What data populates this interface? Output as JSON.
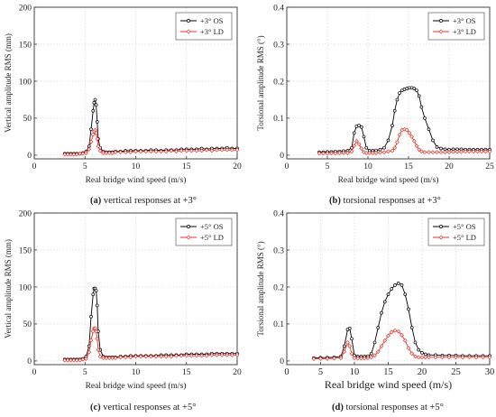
{
  "chart_data": [
    {
      "type": "line",
      "panel": "a",
      "caption_letter": "(a)",
      "caption_text": " vertical responses at +3°",
      "xlabel": "Real bridge wind speed (m/s)",
      "ylabel": "Vertical amplitude RMS (mm)",
      "xlim": [
        0,
        20
      ],
      "ylim": [
        -5,
        200
      ],
      "xticks": [
        0,
        5,
        10,
        15,
        20
      ],
      "yticks": [
        0,
        50,
        100,
        150,
        200
      ],
      "grid": true,
      "legend_position": "top-right",
      "series": [
        {
          "name": "+3° OS",
          "color": "#000000",
          "marker": "circle",
          "x": [
            3.0,
            3.3,
            3.6,
            3.9,
            4.2,
            4.5,
            4.8,
            5.1,
            5.4,
            5.6,
            5.8,
            5.9,
            6.0,
            6.1,
            6.2,
            6.3,
            6.5,
            6.8,
            7.1,
            7.4,
            7.7,
            8.0,
            8.5,
            9.0,
            9.5,
            10.0,
            10.5,
            11.0,
            11.5,
            12.0,
            12.5,
            13.0,
            13.5,
            14.0,
            14.5,
            15.0,
            15.5,
            16.0,
            16.5,
            17.0,
            17.5,
            18.0,
            18.5,
            19.0,
            19.5,
            20.0
          ],
          "y": [
            2,
            2,
            2,
            2,
            2,
            2,
            3,
            5,
            12,
            35,
            60,
            71,
            75,
            68,
            45,
            22,
            10,
            5,
            4,
            4,
            4,
            5,
            5,
            6,
            6,
            6,
            6,
            6,
            7,
            7,
            6,
            7,
            7,
            7,
            8,
            8,
            8,
            8,
            9,
            8,
            9,
            9,
            9,
            10,
            9,
            9
          ]
        },
        {
          "name": "+3° LD",
          "color": "#e8322a",
          "marker": "diamond",
          "x": [
            3.0,
            3.3,
            3.6,
            3.9,
            4.2,
            4.5,
            4.8,
            5.1,
            5.4,
            5.6,
            5.8,
            5.9,
            6.0,
            6.1,
            6.2,
            6.3,
            6.5,
            6.8,
            7.1,
            7.4,
            7.7,
            8.0,
            8.5,
            9.0,
            9.5,
            10.0,
            10.5,
            11.0,
            11.5,
            12.0,
            12.5,
            13.0,
            13.5,
            14.0,
            14.5,
            15.0,
            15.5,
            16.0,
            16.5,
            17.0,
            17.5,
            18.0,
            18.5,
            19.0,
            19.5,
            20.0
          ],
          "y": [
            1,
            1,
            1,
            1,
            1,
            2,
            2,
            3,
            8,
            18,
            28,
            32,
            34,
            30,
            22,
            12,
            6,
            3,
            3,
            3,
            3,
            4,
            4,
            4,
            4,
            5,
            5,
            5,
            5,
            5,
            5,
            5,
            6,
            5,
            6,
            6,
            6,
            6,
            6,
            7,
            6,
            7,
            7,
            7,
            7,
            7
          ]
        }
      ]
    },
    {
      "type": "line",
      "panel": "b",
      "caption_letter": "(b)",
      "caption_text": " torsional responses at +3°",
      "xlabel": "Real bridge wind speed (m/s)",
      "ylabel": "Torsional amplitude RMS (°)",
      "xlim": [
        0,
        25
      ],
      "ylim": [
        -0.01,
        0.4
      ],
      "xticks": [
        0,
        5,
        10,
        15,
        20,
        25
      ],
      "yticks": [
        0.0,
        0.1,
        0.2,
        0.3,
        0.4
      ],
      "grid": true,
      "legend_position": "top-right",
      "series": [
        {
          "name": "+3° OS",
          "color": "#000000",
          "marker": "circle",
          "x": [
            4.0,
            4.5,
            5.0,
            5.5,
            6.0,
            6.5,
            7.0,
            7.5,
            8.0,
            8.3,
            8.6,
            8.9,
            9.2,
            9.5,
            9.8,
            10.2,
            10.6,
            11.0,
            11.5,
            12.0,
            12.5,
            13.0,
            13.3,
            13.6,
            13.9,
            14.2,
            14.5,
            14.8,
            15.1,
            15.4,
            15.7,
            16.0,
            16.3,
            16.6,
            17.0,
            17.5,
            18.0,
            18.5,
            19.0,
            19.5,
            20.0,
            20.5,
            21.0,
            21.5,
            22.0,
            22.5,
            23.0,
            23.5,
            24.0,
            24.5,
            25.0
          ],
          "y": [
            0.008,
            0.008,
            0.009,
            0.009,
            0.01,
            0.01,
            0.011,
            0.012,
            0.02,
            0.06,
            0.078,
            0.08,
            0.076,
            0.05,
            0.02,
            0.012,
            0.012,
            0.013,
            0.015,
            0.02,
            0.04,
            0.08,
            0.12,
            0.15,
            0.168,
            0.175,
            0.178,
            0.18,
            0.182,
            0.182,
            0.18,
            0.175,
            0.16,
            0.13,
            0.1,
            0.07,
            0.04,
            0.022,
            0.018,
            0.016,
            0.015,
            0.016,
            0.016,
            0.016,
            0.015,
            0.015,
            0.015,
            0.015,
            0.015,
            0.015,
            0.015
          ]
        },
        {
          "name": "+3° LD",
          "color": "#e8322a",
          "marker": "diamond",
          "x": [
            4.0,
            4.5,
            5.0,
            5.5,
            6.0,
            6.5,
            7.0,
            7.5,
            8.0,
            8.3,
            8.6,
            8.9,
            9.2,
            9.5,
            9.8,
            10.2,
            10.6,
            11.0,
            11.5,
            12.0,
            12.5,
            13.0,
            13.3,
            13.6,
            13.9,
            14.2,
            14.5,
            14.8,
            15.1,
            15.4,
            15.7,
            16.0,
            16.3,
            16.6,
            17.0,
            17.5,
            18.0,
            18.5,
            19.0,
            19.5,
            20.0,
            20.5,
            21.0,
            21.5,
            22.0,
            22.5,
            23.0,
            23.5,
            24.0,
            24.5,
            25.0
          ],
          "y": [
            0.005,
            0.005,
            0.005,
            0.005,
            0.005,
            0.006,
            0.006,
            0.006,
            0.01,
            0.025,
            0.038,
            0.03,
            0.018,
            0.008,
            0.006,
            0.006,
            0.006,
            0.006,
            0.007,
            0.008,
            0.01,
            0.012,
            0.02,
            0.035,
            0.055,
            0.068,
            0.07,
            0.068,
            0.06,
            0.05,
            0.038,
            0.025,
            0.015,
            0.01,
            0.008,
            0.008,
            0.008,
            0.008,
            0.008,
            0.008,
            0.008,
            0.009,
            0.009,
            0.009,
            0.01,
            0.01,
            0.01,
            0.01,
            0.01,
            0.01,
            0.01
          ]
        }
      ]
    },
    {
      "type": "line",
      "panel": "c",
      "caption_letter": "(c)",
      "caption_text": " vertical responses at +5°",
      "xlabel": "Real bridge wind speed (m/s)",
      "ylabel": "Vertical amplitude RMS (mm)",
      "xlim": [
        0,
        20
      ],
      "ylim": [
        -5,
        200
      ],
      "xticks": [
        0,
        5,
        10,
        15,
        20
      ],
      "yticks": [
        0,
        50,
        100,
        150,
        200
      ],
      "grid": true,
      "legend_position": "top-right",
      "series": [
        {
          "name": "+5° OS",
          "color": "#000000",
          "marker": "circle",
          "x": [
            3.0,
            3.3,
            3.6,
            3.9,
            4.2,
            4.5,
            4.8,
            5.1,
            5.4,
            5.6,
            5.8,
            5.9,
            6.0,
            6.1,
            6.2,
            6.3,
            6.5,
            6.8,
            7.1,
            7.4,
            7.7,
            8.0,
            8.5,
            9.0,
            9.5,
            10.0,
            10.5,
            11.0,
            11.5,
            12.0,
            12.5,
            13.0,
            13.5,
            14.0,
            14.5,
            15.0,
            15.5,
            16.0,
            16.5,
            17.0,
            17.5,
            18.0,
            18.5,
            19.0,
            19.5,
            20.0
          ],
          "y": [
            2,
            2,
            2,
            2,
            2,
            2,
            3,
            6,
            20,
            60,
            90,
            98,
            98,
            95,
            75,
            40,
            15,
            6,
            5,
            5,
            5,
            5,
            6,
            6,
            7,
            7,
            7,
            7,
            7,
            7,
            8,
            8,
            8,
            8,
            8,
            9,
            9,
            9,
            9,
            9,
            10,
            10,
            10,
            10,
            10,
            10
          ]
        },
        {
          "name": "+5° LD",
          "color": "#e8322a",
          "marker": "diamond",
          "x": [
            3.0,
            3.3,
            3.6,
            3.9,
            4.2,
            4.5,
            4.8,
            5.1,
            5.4,
            5.6,
            5.8,
            5.9,
            6.0,
            6.1,
            6.2,
            6.3,
            6.5,
            6.8,
            7.1,
            7.4,
            7.7,
            8.0,
            8.5,
            9.0,
            9.5,
            10.0,
            10.5,
            11.0,
            11.5,
            12.0,
            12.5,
            13.0,
            13.5,
            14.0,
            14.5,
            15.0,
            15.5,
            16.0,
            16.5,
            17.0,
            17.5,
            18.0,
            18.5,
            19.0,
            19.5,
            20.0
          ],
          "y": [
            1,
            1,
            1,
            1,
            1,
            1,
            2,
            3,
            12,
            28,
            40,
            44,
            44,
            40,
            30,
            15,
            6,
            4,
            4,
            4,
            4,
            4,
            5,
            5,
            5,
            6,
            6,
            6,
            6,
            6,
            6,
            6,
            6,
            7,
            7,
            7,
            7,
            7,
            7,
            7,
            8,
            8,
            8,
            8,
            8,
            8
          ]
        }
      ]
    },
    {
      "type": "line",
      "panel": "d",
      "caption_letter": "(d)",
      "caption_text": " torsional responses at +5°",
      "xlabel": "Real bridge wind speed (m/s)",
      "ylabel": "Torsional amplitude RMS (°)",
      "xlim": [
        0,
        30
      ],
      "ylim": [
        -0.01,
        0.4
      ],
      "xticks": [
        0,
        5,
        10,
        15,
        20,
        25,
        30
      ],
      "yticks": [
        0.0,
        0.1,
        0.2,
        0.3,
        0.4
      ],
      "grid": true,
      "legend_position": "top-right",
      "series": [
        {
          "name": "+5° OS",
          "color": "#000000",
          "marker": "circle",
          "x": [
            4.0,
            5.0,
            6.0,
            7.0,
            8.0,
            8.5,
            9.0,
            9.3,
            9.6,
            10.0,
            10.5,
            11.0,
            11.5,
            12.0,
            12.5,
            13.0,
            13.5,
            14.0,
            14.5,
            15.0,
            15.5,
            16.0,
            16.5,
            17.0,
            17.5,
            18.0,
            18.5,
            19.0,
            19.5,
            20.0,
            20.5,
            21.0,
            22.0,
            23.0,
            24.0,
            25.0,
            26.0,
            27.0,
            28.0,
            29.0,
            30.0
          ],
          "y": [
            0.008,
            0.009,
            0.009,
            0.01,
            0.012,
            0.04,
            0.085,
            0.088,
            0.06,
            0.015,
            0.012,
            0.012,
            0.012,
            0.013,
            0.02,
            0.05,
            0.09,
            0.13,
            0.16,
            0.18,
            0.195,
            0.205,
            0.21,
            0.205,
            0.18,
            0.14,
            0.09,
            0.05,
            0.03,
            0.022,
            0.018,
            0.016,
            0.016,
            0.015,
            0.015,
            0.015,
            0.014,
            0.014,
            0.014,
            0.014,
            0.014
          ]
        },
        {
          "name": "+5° LD",
          "color": "#e8322a",
          "marker": "diamond",
          "x": [
            4.0,
            5.0,
            6.0,
            7.0,
            8.0,
            8.5,
            9.0,
            9.3,
            9.6,
            10.0,
            10.5,
            11.0,
            11.5,
            12.0,
            12.5,
            13.0,
            13.5,
            14.0,
            14.5,
            15.0,
            15.5,
            16.0,
            16.5,
            17.0,
            17.5,
            18.0,
            18.5,
            19.0,
            19.5,
            20.0,
            20.5,
            21.0,
            22.0,
            23.0,
            24.0,
            25.0,
            26.0,
            27.0,
            28.0,
            29.0,
            30.0
          ],
          "y": [
            0.006,
            0.006,
            0.006,
            0.007,
            0.008,
            0.025,
            0.05,
            0.04,
            0.02,
            0.008,
            0.007,
            0.007,
            0.007,
            0.008,
            0.01,
            0.015,
            0.025,
            0.04,
            0.055,
            0.068,
            0.078,
            0.082,
            0.08,
            0.07,
            0.055,
            0.035,
            0.02,
            0.012,
            0.01,
            0.01,
            0.01,
            0.01,
            0.01,
            0.01,
            0.01,
            0.01,
            0.01,
            0.01,
            0.01,
            0.01,
            0.01
          ]
        }
      ]
    }
  ]
}
